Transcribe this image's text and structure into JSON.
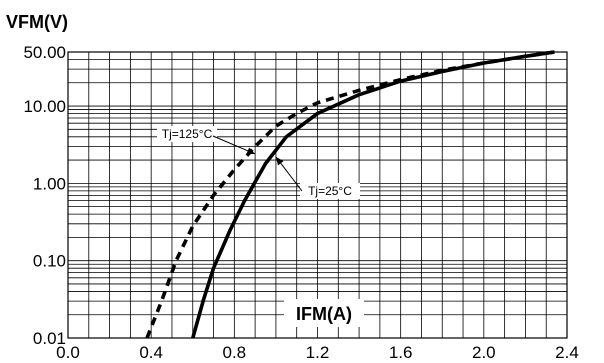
{
  "chart_data": {
    "type": "line",
    "xlabel": "IFM(A)",
    "ylabel": "VFM(V)",
    "xlim": [
      0.0,
      2.4
    ],
    "ylim": [
      0.01,
      50
    ],
    "y_scale": "log",
    "grid": true,
    "x_ticks": [
      0.0,
      0.4,
      0.8,
      1.2,
      1.6,
      2.0,
      2.4
    ],
    "x_tick_labels": [
      "0.0",
      "0.4",
      "0.8",
      "1.2",
      "1.6",
      "2.0",
      "2.4"
    ],
    "y_ticks": [
      0.01,
      0.1,
      1,
      10,
      50
    ],
    "y_tick_labels": [
      "0.01",
      "0.10",
      "1.00",
      "10.00",
      "50.00"
    ],
    "series": [
      {
        "name": "Tj=25°C",
        "style": "solid",
        "x": [
          0.6,
          0.65,
          0.7,
          0.78,
          0.85,
          0.95,
          1.05,
          1.2,
          1.4,
          1.6,
          1.8,
          2.0,
          2.2,
          2.34
        ],
        "y": [
          0.01,
          0.03,
          0.08,
          0.25,
          0.6,
          1.8,
          4.0,
          8.0,
          14.0,
          21.0,
          28.0,
          36.0,
          44.0,
          50.0
        ]
      },
      {
        "name": "Tj=125°C",
        "style": "dashed",
        "x": [
          0.38,
          0.45,
          0.52,
          0.6,
          0.7,
          0.8,
          0.9,
          1.0,
          1.1,
          1.2,
          1.4,
          1.6,
          1.8,
          2.0,
          2.2,
          2.34
        ],
        "y": [
          0.01,
          0.03,
          0.1,
          0.28,
          0.7,
          1.5,
          3.0,
          5.5,
          8.0,
          11.0,
          16.0,
          22.0,
          29.0,
          36.0,
          44.0,
          50.0
        ]
      }
    ],
    "annotations": [
      {
        "text": "Tj=125°C",
        "series": 1
      },
      {
        "text": "Tj=25°C",
        "series": 0
      }
    ]
  }
}
